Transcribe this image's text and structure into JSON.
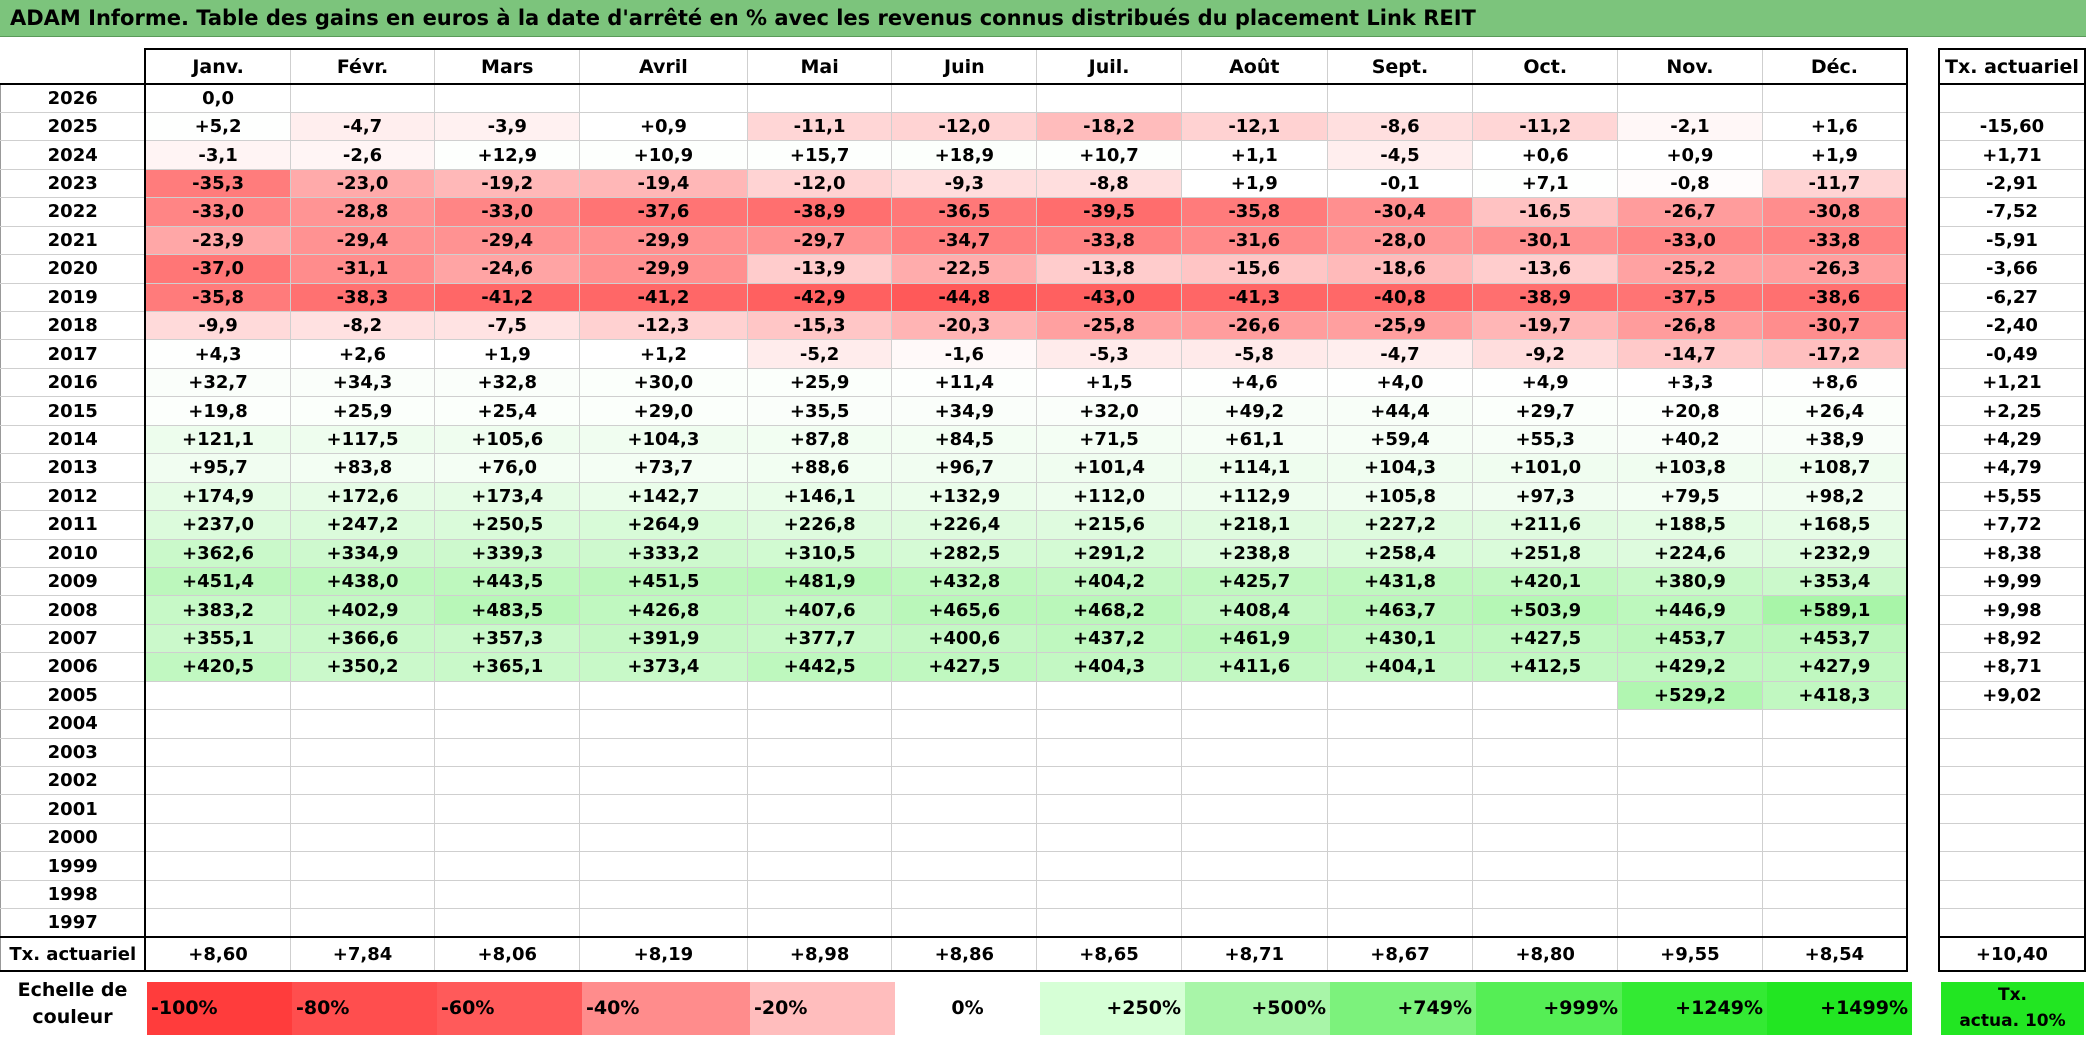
{
  "title": "ADAM Informe. Table des gains en euros à la date d'arrêté en % avec les revenus connus distribués du placement Link REIT",
  "months": [
    "Janv.",
    "Févr.",
    "Mars",
    "Avril",
    "Mai",
    "Juin",
    "Juil.",
    "Août",
    "Sept.",
    "Oct.",
    "Nov.",
    "Déc."
  ],
  "ta_header": "Tx. actuariel",
  "rows": [
    {
      "year": "2026",
      "cells": [
        "0,0",
        "",
        "",
        "",
        "",
        "",
        "",
        "",
        "",
        "",
        "",
        ""
      ],
      "ta": ""
    },
    {
      "year": "2025",
      "cells": [
        "+5,2",
        "-4,7",
        "-3,9",
        "+0,9",
        "-11,1",
        "-12,0",
        "-18,2",
        "-12,1",
        "-8,6",
        "-11,2",
        "-2,1",
        "+1,6"
      ],
      "ta": "-15,60"
    },
    {
      "year": "2024",
      "cells": [
        "-3,1",
        "-2,6",
        "+12,9",
        "+10,9",
        "+15,7",
        "+18,9",
        "+10,7",
        "+1,1",
        "-4,5",
        "+0,6",
        "+0,9",
        "+1,9"
      ],
      "ta": "+1,71"
    },
    {
      "year": "2023",
      "cells": [
        "-35,3",
        "-23,0",
        "-19,2",
        "-19,4",
        "-12,0",
        "-9,3",
        "-8,8",
        "+1,9",
        "-0,1",
        "+7,1",
        "-0,8",
        "-11,7"
      ],
      "ta": "-2,91"
    },
    {
      "year": "2022",
      "cells": [
        "-33,0",
        "-28,8",
        "-33,0",
        "-37,6",
        "-38,9",
        "-36,5",
        "-39,5",
        "-35,8",
        "-30,4",
        "-16,5",
        "-26,7",
        "-30,8"
      ],
      "ta": "-7,52"
    },
    {
      "year": "2021",
      "cells": [
        "-23,9",
        "-29,4",
        "-29,4",
        "-29,9",
        "-29,7",
        "-34,7",
        "-33,8",
        "-31,6",
        "-28,0",
        "-30,1",
        "-33,0",
        "-33,8"
      ],
      "ta": "-5,91"
    },
    {
      "year": "2020",
      "cells": [
        "-37,0",
        "-31,1",
        "-24,6",
        "-29,9",
        "-13,9",
        "-22,5",
        "-13,8",
        "-15,6",
        "-18,6",
        "-13,6",
        "-25,2",
        "-26,3"
      ],
      "ta": "-3,66"
    },
    {
      "year": "2019",
      "cells": [
        "-35,8",
        "-38,3",
        "-41,2",
        "-41,2",
        "-42,9",
        "-44,8",
        "-43,0",
        "-41,3",
        "-40,8",
        "-38,9",
        "-37,5",
        "-38,6"
      ],
      "ta": "-6,27"
    },
    {
      "year": "2018",
      "cells": [
        "-9,9",
        "-8,2",
        "-7,5",
        "-12,3",
        "-15,3",
        "-20,3",
        "-25,8",
        "-26,6",
        "-25,9",
        "-19,7",
        "-26,8",
        "-30,7"
      ],
      "ta": "-2,40"
    },
    {
      "year": "2017",
      "cells": [
        "+4,3",
        "+2,6",
        "+1,9",
        "+1,2",
        "-5,2",
        "-1,6",
        "-5,3",
        "-5,8",
        "-4,7",
        "-9,2",
        "-14,7",
        "-17,2"
      ],
      "ta": "-0,49"
    },
    {
      "year": "2016",
      "cells": [
        "+32,7",
        "+34,3",
        "+32,8",
        "+30,0",
        "+25,9",
        "+11,4",
        "+1,5",
        "+4,6",
        "+4,0",
        "+4,9",
        "+3,3",
        "+8,6"
      ],
      "ta": "+1,21"
    },
    {
      "year": "2015",
      "cells": [
        "+19,8",
        "+25,9",
        "+25,4",
        "+29,0",
        "+35,5",
        "+34,9",
        "+32,0",
        "+49,2",
        "+44,4",
        "+29,7",
        "+20,8",
        "+26,4"
      ],
      "ta": "+2,25"
    },
    {
      "year": "2014",
      "cells": [
        "+121,1",
        "+117,5",
        "+105,6",
        "+104,3",
        "+87,8",
        "+84,5",
        "+71,5",
        "+61,1",
        "+59,4",
        "+55,3",
        "+40,2",
        "+38,9"
      ],
      "ta": "+4,29"
    },
    {
      "year": "2013",
      "cells": [
        "+95,7",
        "+83,8",
        "+76,0",
        "+73,7",
        "+88,6",
        "+96,7",
        "+101,4",
        "+114,1",
        "+104,3",
        "+101,0",
        "+103,8",
        "+108,7"
      ],
      "ta": "+4,79"
    },
    {
      "year": "2012",
      "cells": [
        "+174,9",
        "+172,6",
        "+173,4",
        "+142,7",
        "+146,1",
        "+132,9",
        "+112,0",
        "+112,9",
        "+105,8",
        "+97,3",
        "+79,5",
        "+98,2"
      ],
      "ta": "+5,55"
    },
    {
      "year": "2011",
      "cells": [
        "+237,0",
        "+247,2",
        "+250,5",
        "+264,9",
        "+226,8",
        "+226,4",
        "+215,6",
        "+218,1",
        "+227,2",
        "+211,6",
        "+188,5",
        "+168,5"
      ],
      "ta": "+7,72"
    },
    {
      "year": "2010",
      "cells": [
        "+362,6",
        "+334,9",
        "+339,3",
        "+333,2",
        "+310,5",
        "+282,5",
        "+291,2",
        "+238,8",
        "+258,4",
        "+251,8",
        "+224,6",
        "+232,9"
      ],
      "ta": "+8,38"
    },
    {
      "year": "2009",
      "cells": [
        "+451,4",
        "+438,0",
        "+443,5",
        "+451,5",
        "+481,9",
        "+432,8",
        "+404,2",
        "+425,7",
        "+431,8",
        "+420,1",
        "+380,9",
        "+353,4"
      ],
      "ta": "+9,99"
    },
    {
      "year": "2008",
      "cells": [
        "+383,2",
        "+402,9",
        "+483,5",
        "+426,8",
        "+407,6",
        "+465,6",
        "+468,2",
        "+408,4",
        "+463,7",
        "+503,9",
        "+446,9",
        "+589,1"
      ],
      "ta": "+9,98"
    },
    {
      "year": "2007",
      "cells": [
        "+355,1",
        "+366,6",
        "+357,3",
        "+391,9",
        "+377,7",
        "+400,6",
        "+437,2",
        "+461,9",
        "+430,1",
        "+427,5",
        "+453,7",
        "+453,7"
      ],
      "ta": "+8,92"
    },
    {
      "year": "2006",
      "cells": [
        "+420,5",
        "+350,2",
        "+365,1",
        "+373,4",
        "+442,5",
        "+427,5",
        "+404,3",
        "+411,6",
        "+404,1",
        "+412,5",
        "+429,2",
        "+427,9"
      ],
      "ta": "+8,71"
    },
    {
      "year": "2005",
      "cells": [
        "",
        "",
        "",
        "",
        "",
        "",
        "",
        "",
        "",
        "",
        "+529,2",
        "+418,3"
      ],
      "ta": "+9,02"
    },
    {
      "year": "2004",
      "cells": [
        "",
        "",
        "",
        "",
        "",
        "",
        "",
        "",
        "",
        "",
        "",
        ""
      ],
      "ta": ""
    },
    {
      "year": "2003",
      "cells": [
        "",
        "",
        "",
        "",
        "",
        "",
        "",
        "",
        "",
        "",
        "",
        ""
      ],
      "ta": ""
    },
    {
      "year": "2002",
      "cells": [
        "",
        "",
        "",
        "",
        "",
        "",
        "",
        "",
        "",
        "",
        "",
        ""
      ],
      "ta": ""
    },
    {
      "year": "2001",
      "cells": [
        "",
        "",
        "",
        "",
        "",
        "",
        "",
        "",
        "",
        "",
        "",
        ""
      ],
      "ta": ""
    },
    {
      "year": "2000",
      "cells": [
        "",
        "",
        "",
        "",
        "",
        "",
        "",
        "",
        "",
        "",
        "",
        ""
      ],
      "ta": ""
    },
    {
      "year": "1999",
      "cells": [
        "",
        "",
        "",
        "",
        "",
        "",
        "",
        "",
        "",
        "",
        "",
        ""
      ],
      "ta": ""
    },
    {
      "year": "1998",
      "cells": [
        "",
        "",
        "",
        "",
        "",
        "",
        "",
        "",
        "",
        "",
        "",
        ""
      ],
      "ta": ""
    },
    {
      "year": "1997",
      "cells": [
        "",
        "",
        "",
        "",
        "",
        "",
        "",
        "",
        "",
        "",
        "",
        ""
      ],
      "ta": ""
    }
  ],
  "footer": {
    "label": "Tx. actuariel",
    "values": [
      "+8,60",
      "+7,84",
      "+8,06",
      "+8,19",
      "+8,98",
      "+8,86",
      "+8,65",
      "+8,71",
      "+8,67",
      "+8,80",
      "+9,55",
      "+8,54"
    ],
    "total": "+10,40"
  },
  "scale": {
    "label_line1": "Echelle de",
    "label_line2": "couleur",
    "items": [
      {
        "label": "-100%",
        "color": "#ff3c3c",
        "align": "left"
      },
      {
        "label": "-80%",
        "color": "#ff4e4e",
        "align": "left"
      },
      {
        "label": "-60%",
        "color": "#ff5a5a",
        "align": "left"
      },
      {
        "label": "-40%",
        "color": "#ff8c8c",
        "align": "left"
      },
      {
        "label": "-20%",
        "color": "#ffbdbd",
        "align": "left"
      },
      {
        "label": "0%",
        "color": "#ffffff",
        "align": "center"
      },
      {
        "label": "+250%",
        "color": "#d6ffd6",
        "align": "right"
      },
      {
        "label": "+500%",
        "color": "#a8f5a8",
        "align": "right"
      },
      {
        "label": "+749%",
        "color": "#7cf27c",
        "align": "right"
      },
      {
        "label": "+999%",
        "color": "#55ee55",
        "align": "right"
      },
      {
        "label": "+1249%",
        "color": "#33ea33",
        "align": "right"
      },
      {
        "label": "+1499%",
        "color": "#22e622",
        "align": "right"
      }
    ],
    "ta_legend_line1": "Tx.",
    "ta_legend_line2": "actua. 10%"
  }
}
